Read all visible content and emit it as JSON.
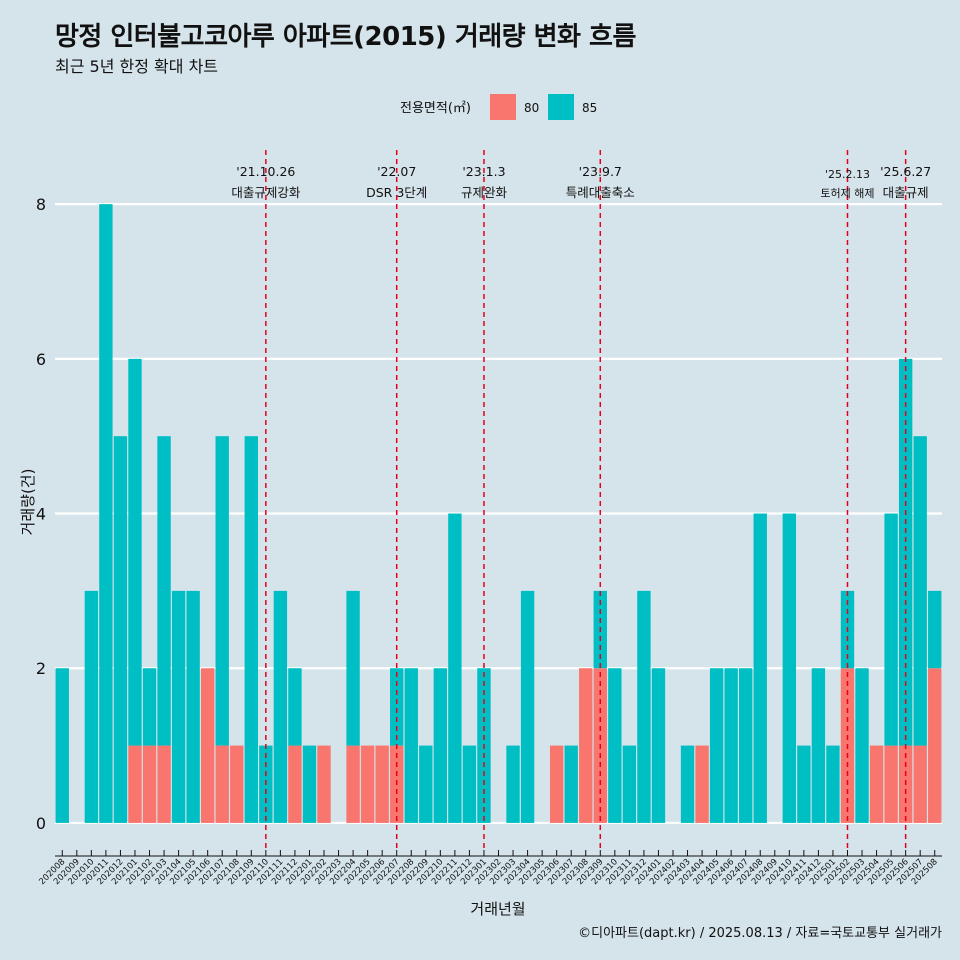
{
  "title": "망정 인터불고코아루 아파트(2015) 거래량 변화 흐름",
  "subtitle": "최근 5년 한정 확대 차트",
  "caption": "©디아파트(dapt.kr) / 2025.08.13 / 자료=국토교통부 실거래가",
  "colors": {
    "background": "#d5e3ea",
    "s80": "#f8766d",
    "s85": "#00bfc4",
    "event_line": "#e8001a",
    "grid": "#ffffff"
  },
  "chart_data": {
    "type": "bar",
    "stacked": true,
    "xlabel": "거래년월",
    "ylabel": "거래량(건)",
    "ylim": [
      -0.35,
      8.7
    ],
    "yticks": [
      0,
      2,
      4,
      6,
      8
    ],
    "grid": true,
    "legend": {
      "title": "전용면적(㎡)",
      "position": "top"
    },
    "categories": [
      "202008",
      "202009",
      "202010",
      "202011",
      "202012",
      "202101",
      "202102",
      "202103",
      "202104",
      "202105",
      "202106",
      "202107",
      "202108",
      "202109",
      "202110",
      "202111",
      "202112",
      "202201",
      "202202",
      "202203",
      "202204",
      "202205",
      "202206",
      "202207",
      "202208",
      "202209",
      "202210",
      "202211",
      "202212",
      "202301",
      "202302",
      "202303",
      "202304",
      "202305",
      "202306",
      "202307",
      "202308",
      "202309",
      "202310",
      "202311",
      "202312",
      "202401",
      "202402",
      "202403",
      "202404",
      "202405",
      "202406",
      "202407",
      "202408",
      "202409",
      "202410",
      "202411",
      "202412",
      "202501",
      "202502",
      "202503",
      "202504",
      "202505",
      "202506",
      "202507",
      "202508"
    ],
    "series": [
      {
        "name": "80",
        "values": [
          0,
          0,
          0,
          0,
          0,
          1,
          1,
          1,
          0,
          0,
          2,
          1,
          1,
          0,
          0,
          0,
          1,
          0,
          1,
          0,
          1,
          1,
          1,
          1,
          0,
          0,
          0,
          0,
          0,
          0,
          0,
          0,
          0,
          0,
          1,
          0,
          2,
          2,
          0,
          0,
          0,
          0,
          0,
          0,
          1,
          0,
          0,
          0,
          0,
          0,
          0,
          0,
          0,
          0,
          2,
          0,
          1,
          1,
          1,
          1,
          2
        ]
      },
      {
        "name": "85",
        "values": [
          2,
          0,
          3,
          8,
          5,
          5,
          1,
          4,
          3,
          3,
          0,
          4,
          0,
          5,
          1,
          3,
          1,
          1,
          0,
          0,
          2,
          0,
          0,
          1,
          2,
          1,
          2,
          4,
          1,
          2,
          0,
          1,
          3,
          0,
          0,
          1,
          0,
          1,
          2,
          1,
          3,
          2,
          0,
          1,
          0,
          2,
          2,
          2,
          4,
          0,
          4,
          1,
          2,
          1,
          1,
          2,
          0,
          3,
          5,
          4,
          1
        ]
      }
    ],
    "events": [
      {
        "date": "'21.10.26",
        "label": "대출규제강화",
        "month": "202110"
      },
      {
        "date": "'22.07",
        "label": "DSR 3단계",
        "month": "202207"
      },
      {
        "date": "'23.1.3",
        "label": "규제완화",
        "month": "202301"
      },
      {
        "date": "'23.9.7",
        "label": "특례대출축소",
        "month": "202309"
      },
      {
        "date": "'25.2.13",
        "label": "토허제 해제",
        "month": "202502"
      },
      {
        "date": "'25.6.27",
        "label": "대출규제",
        "month": "202506"
      }
    ]
  }
}
